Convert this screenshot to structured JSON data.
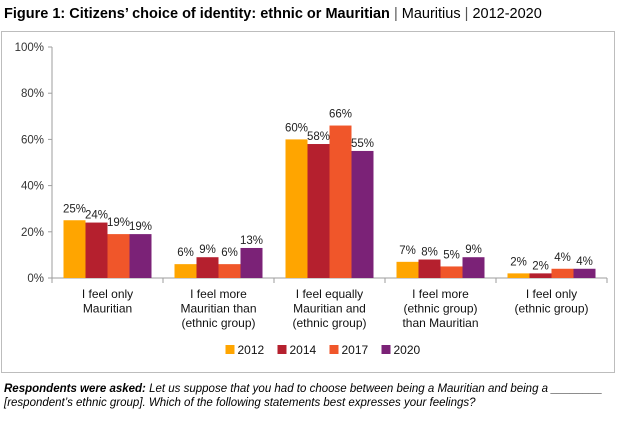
{
  "header": {
    "title_bold": "Figure 1: Citizens’ choice of identity: ethnic or Mauritian",
    "separator": "|",
    "country": "Mauritius",
    "years": "2012-2020"
  },
  "footnote": {
    "label": "Respondents were asked:",
    "text": "Let us suppose that you had to choose between being a Mauritian and being a ________ [respondent’s ethnic group]. Which of the following statements best expresses your feelings?"
  },
  "chart_data": {
    "type": "bar",
    "title": "Citizens’ choice of identity: ethnic or Mauritian",
    "categories": [
      [
        "I feel only",
        "Mauritian"
      ],
      [
        "I feel more",
        "Mauritian than",
        "(ethnic group)"
      ],
      [
        "I feel equally",
        "Mauritian and",
        "(ethnic group)"
      ],
      [
        "I feel more",
        "(ethnic group)",
        "than Mauritian"
      ],
      [
        "I feel only",
        "(ethnic group)"
      ]
    ],
    "series": [
      {
        "name": "2012",
        "color": "#FFA500",
        "values": [
          25,
          6,
          60,
          7,
          2
        ]
      },
      {
        "name": "2014",
        "color": "#B5202E",
        "values": [
          24,
          9,
          58,
          8,
          2
        ]
      },
      {
        "name": "2017",
        "color": "#F0562A",
        "values": [
          19,
          6,
          66,
          5,
          4
        ]
      },
      {
        "name": "2020",
        "color": "#7B2277",
        "values": [
          19,
          13,
          55,
          9,
          4
        ]
      }
    ],
    "value_suffix": "%",
    "ylim": [
      0,
      100
    ],
    "yticks": [
      "0%",
      "20%",
      "40%",
      "60%",
      "80%",
      "100%"
    ],
    "legend_position": "bottom-center",
    "xlabel": "",
    "ylabel": ""
  }
}
